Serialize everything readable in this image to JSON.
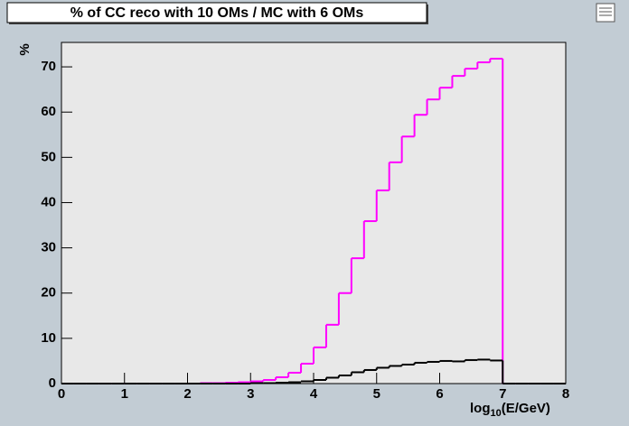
{
  "chart_data": {
    "type": "histogram",
    "title": "% of CC reco  with 10 OMs / MC with 6 OMs",
    "ylabel": "%",
    "xlabel": [
      "log",
      "10",
      "(E/GeV)"
    ],
    "bins": [
      0,
      0.2,
      0.4,
      0.6,
      0.8,
      1,
      1.2,
      1.4,
      1.6,
      1.8,
      2,
      2.2,
      2.4,
      2.6,
      2.8,
      3,
      3.2,
      3.4,
      3.6,
      3.8,
      4,
      4.2,
      4.4,
      4.6,
      4.8,
      5,
      5.2,
      5.4,
      5.6,
      5.8,
      6,
      6.2,
      6.4,
      6.6,
      6.8,
      7,
      7.2,
      7.4,
      7.6,
      7.8,
      8
    ],
    "series": [
      {
        "color": "#ff00ff",
        "values": [
          0,
          0,
          0,
          0,
          0,
          0,
          0,
          0,
          0,
          0,
          0,
          0.1,
          0.1,
          0.2,
          0.3,
          0.5,
          0.8,
          1.4,
          2.4,
          4.4,
          8,
          13,
          20,
          27.7,
          35.9,
          42.7,
          48.9,
          54.6,
          59.4,
          62.8,
          65.4,
          68,
          69.6,
          71,
          71.8,
          0,
          0,
          0,
          0,
          0
        ]
      },
      {
        "color": "#000000",
        "values": [
          0,
          0,
          0,
          0,
          0,
          0,
          0,
          0,
          0,
          0,
          0,
          0,
          0,
          0,
          0,
          0.1,
          0.1,
          0.2,
          0.3,
          0.5,
          0.8,
          1.3,
          1.8,
          2.5,
          3,
          3.5,
          3.9,
          4.2,
          4.6,
          4.8,
          5,
          4.9,
          5.2,
          5.3,
          5.1,
          0,
          0,
          0,
          0,
          0
        ]
      }
    ],
    "xlim": [
      0,
      8
    ],
    "xticks": [
      0,
      1,
      2,
      3,
      4,
      5,
      6,
      7,
      8
    ],
    "ylim": [
      0,
      75.4
    ],
    "yticks": [
      0,
      10,
      20,
      30,
      40,
      50,
      60,
      70
    ]
  }
}
